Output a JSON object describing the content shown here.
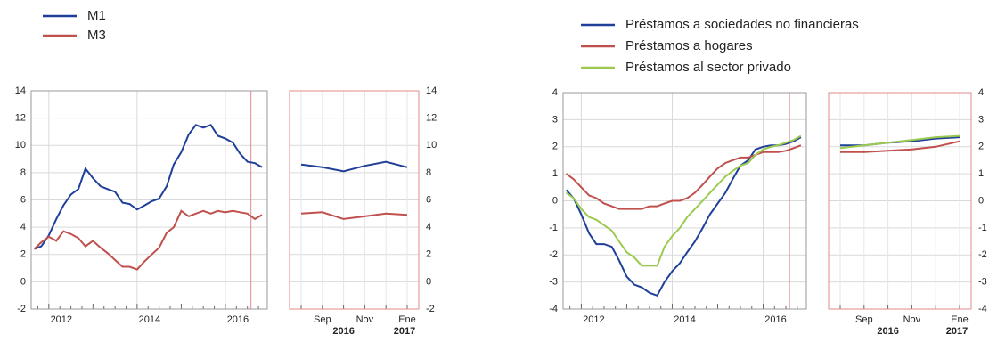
{
  "chart_data": [
    {
      "type": "line",
      "x": [
        2011.67,
        2011.83,
        2012.0,
        2012.17,
        2012.33,
        2012.5,
        2012.67,
        2012.83,
        2013.0,
        2013.17,
        2013.33,
        2013.5,
        2013.67,
        2013.83,
        2014.0,
        2014.17,
        2014.33,
        2014.5,
        2014.67,
        2014.83,
        2015.0,
        2015.17,
        2015.33,
        2015.5,
        2015.67,
        2015.83,
        2016.0,
        2016.17,
        2016.33,
        2016.5,
        2016.67,
        2016.83
      ],
      "xlim": [
        2011.6,
        2016.95
      ],
      "xticks": [
        2012,
        2014,
        2016
      ],
      "ylim": [
        -2,
        14
      ],
      "yticks": [
        -2,
        0,
        2,
        4,
        6,
        8,
        10,
        12,
        14
      ],
      "grid": true,
      "zoom_start": 2016.58,
      "legend": "upper left",
      "series": [
        {
          "name": "M1",
          "color": "#1f3f99",
          "values": [
            2.4,
            2.6,
            3.4,
            4.6,
            5.6,
            6.4,
            6.8,
            8.3,
            7.6,
            7.0,
            6.8,
            6.6,
            5.8,
            5.7,
            5.3,
            5.6,
            5.9,
            6.1,
            7.0,
            8.6,
            9.5,
            10.8,
            11.5,
            11.3,
            11.5,
            10.7,
            10.5,
            10.2,
            9.4,
            8.8,
            8.7,
            8.4
          ]
        },
        {
          "name": "M3",
          "color": "#c0504d",
          "values": [
            2.4,
            2.9,
            3.3,
            3.0,
            3.7,
            3.5,
            3.2,
            2.6,
            3.0,
            2.5,
            2.1,
            1.6,
            1.1,
            1.1,
            0.9,
            1.5,
            2.0,
            2.5,
            3.6,
            4.0,
            5.2,
            4.8,
            5.0,
            5.2,
            5.0,
            5.2,
            5.1,
            5.2,
            5.1,
            5.0,
            4.6,
            4.9
          ]
        }
      ]
    },
    {
      "type": "line",
      "categories": [
        null,
        "Sep",
        null,
        "Nov",
        null,
        "Ene"
      ],
      "year_labels": [
        "2016",
        "2017"
      ],
      "ylim": [
        -2,
        14
      ],
      "yticks": [
        -2,
        0,
        2,
        4,
        6,
        8,
        10,
        12,
        14
      ],
      "grid": true,
      "series": [
        {
          "color": "#1f3f99",
          "values": [
            8.6,
            8.4,
            8.1,
            8.5,
            8.8,
            8.4
          ]
        },
        {
          "color": "#c0504d",
          "values": [
            5.0,
            5.1,
            4.6,
            4.8,
            5.0,
            4.9
          ]
        }
      ]
    },
    {
      "type": "line",
      "x": [
        2011.67,
        2011.83,
        2012.0,
        2012.17,
        2012.33,
        2012.5,
        2012.67,
        2012.83,
        2013.0,
        2013.17,
        2013.33,
        2013.5,
        2013.67,
        2013.83,
        2014.0,
        2014.17,
        2014.33,
        2014.5,
        2014.67,
        2014.83,
        2015.0,
        2015.17,
        2015.33,
        2015.5,
        2015.67,
        2015.83,
        2016.0,
        2016.17,
        2016.33,
        2016.5,
        2016.67,
        2016.83
      ],
      "xlim": [
        2011.6,
        2016.95
      ],
      "xticks": [
        2012,
        2014,
        2016
      ],
      "ylim": [
        -4,
        4
      ],
      "yticks": [
        -4,
        -3,
        -2,
        -1,
        0,
        1,
        2,
        3,
        4
      ],
      "grid": true,
      "zoom_start": 2016.58,
      "legend": "upper left",
      "series": [
        {
          "name": "Préstamos a sociedades no financieras",
          "color": "#1f3f99",
          "values": [
            0.4,
            0.1,
            -0.5,
            -1.2,
            -1.6,
            -1.6,
            -1.7,
            -2.2,
            -2.8,
            -3.1,
            -3.2,
            -3.4,
            -3.5,
            -3.0,
            -2.6,
            -2.3,
            -1.9,
            -1.5,
            -1.0,
            -0.5,
            -0.1,
            0.3,
            0.8,
            1.3,
            1.5,
            1.9,
            2.0,
            2.05,
            2.05,
            2.1,
            2.2,
            2.35
          ]
        },
        {
          "name": "Préstamos a hogares",
          "color": "#c0504d",
          "values": [
            1.0,
            0.8,
            0.5,
            0.2,
            0.1,
            -0.1,
            -0.2,
            -0.3,
            -0.3,
            -0.3,
            -0.3,
            -0.2,
            -0.2,
            -0.1,
            0.0,
            0.0,
            0.1,
            0.3,
            0.6,
            0.9,
            1.2,
            1.4,
            1.5,
            1.6,
            1.6,
            1.7,
            1.8,
            1.8,
            1.8,
            1.85,
            1.95,
            2.05
          ]
        },
        {
          "name": "Préstamos al sector privado",
          "color": "#9bca4f",
          "values": [
            0.3,
            0.1,
            -0.3,
            -0.6,
            -0.7,
            -0.9,
            -1.1,
            -1.5,
            -1.9,
            -2.1,
            -2.4,
            -2.4,
            -2.4,
            -1.7,
            -1.3,
            -1.0,
            -0.6,
            -0.3,
            0.0,
            0.3,
            0.6,
            0.9,
            1.1,
            1.3,
            1.4,
            1.7,
            1.9,
            2.0,
            2.05,
            2.15,
            2.25,
            2.4
          ]
        }
      ]
    },
    {
      "type": "line",
      "categories": [
        null,
        "Sep",
        null,
        "Nov",
        null,
        "Ene"
      ],
      "year_labels": [
        "2016",
        "2017"
      ],
      "ylim": [
        -4,
        4
      ],
      "yticks": [
        -4,
        -3,
        -2,
        -1,
        0,
        1,
        2,
        3,
        4
      ],
      "grid": true,
      "series": [
        {
          "color": "#1f3f99",
          "values": [
            2.05,
            2.05,
            2.15,
            2.2,
            2.3,
            2.35
          ]
        },
        {
          "color": "#c0504d",
          "values": [
            1.8,
            1.8,
            1.85,
            1.9,
            2.0,
            2.2
          ]
        },
        {
          "color": "#9bca4f",
          "values": [
            1.95,
            2.05,
            2.15,
            2.25,
            2.35,
            2.4
          ]
        }
      ]
    }
  ]
}
